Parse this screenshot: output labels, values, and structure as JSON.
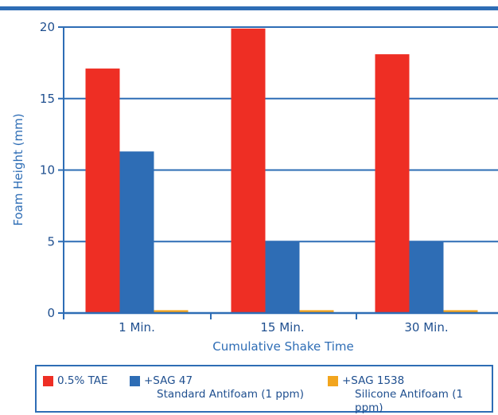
{
  "chart_data": {
    "type": "bar",
    "categories": [
      "1 Min.",
      "15 Min.",
      "30 Min."
    ],
    "series": [
      {
        "name": "0.5% TAE",
        "values": [
          17.1,
          19.9,
          18.1
        ],
        "color": "#ee2e24"
      },
      {
        "name": "+SAG 47",
        "subtitle": "Standard Antifoam (1 ppm)",
        "values": [
          11.3,
          5.0,
          5.0
        ],
        "color": "#2e6db5"
      },
      {
        "name": "+SAG 1538",
        "subtitle": "Silicone Antifoam (1 ppm)",
        "values": [
          0.2,
          0.2,
          0.2
        ],
        "color": "#f2a51e"
      }
    ],
    "yticks": [
      0,
      5,
      10,
      15,
      20
    ],
    "ylim": [
      0,
      20
    ],
    "xlabel": "Cumulative Shake Time",
    "ylabel": "Foam Height (mm)",
    "grid": true,
    "legend_position": "bottom"
  }
}
